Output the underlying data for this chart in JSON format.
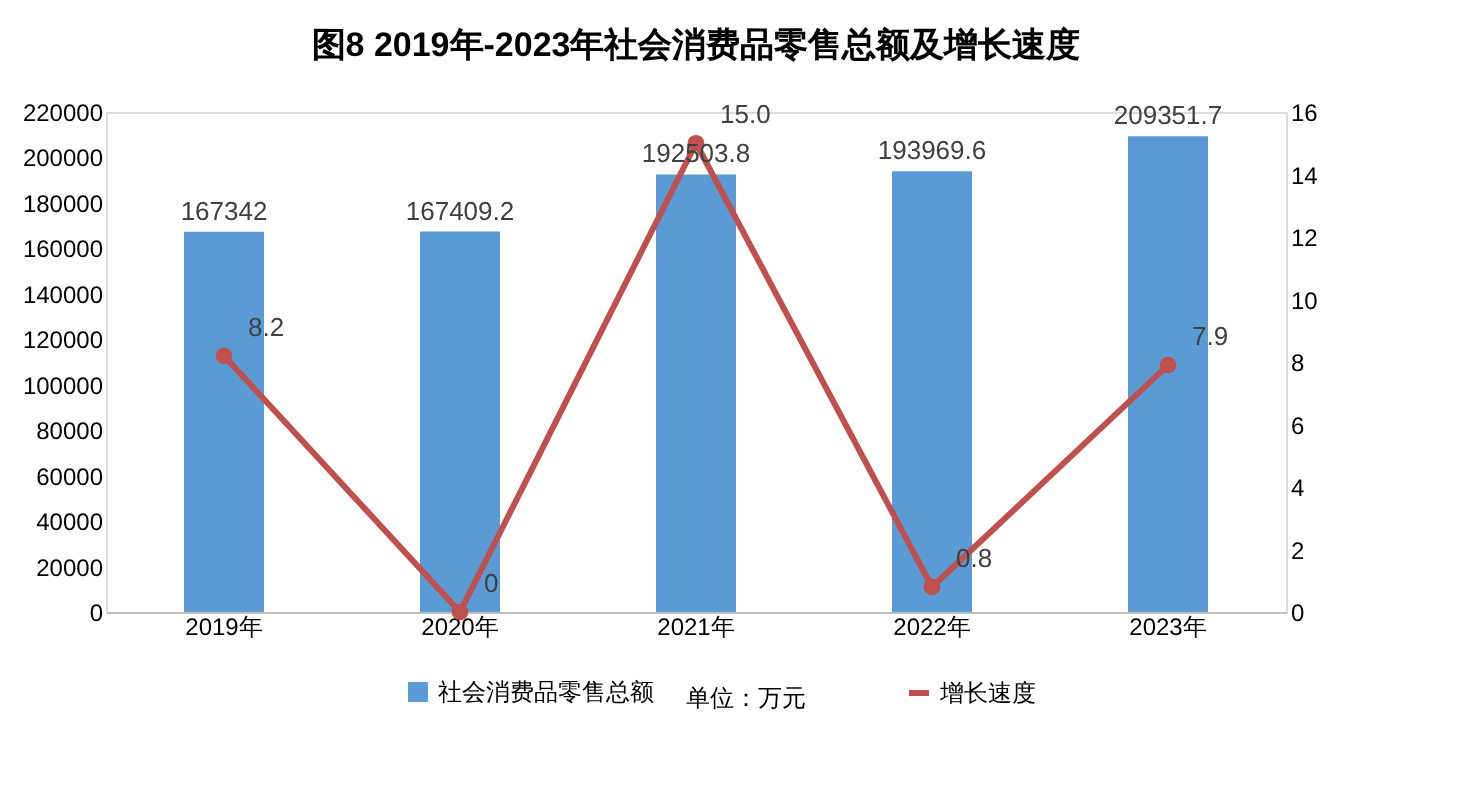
{
  "chart_data": {
    "type": "bar",
    "title": "图8  2019年-2023年社会消费品零售总额及增长速度",
    "categories": [
      "2019年",
      "2020年",
      "2021年",
      "2022年",
      "2023年"
    ],
    "series": [
      {
        "name": "社会消费品零售总额",
        "color": "#5b9bd5",
        "values": [
          167342,
          167409.2,
          192503.8,
          193969.6,
          209351.7
        ],
        "value_labels": [
          "167342",
          "167409.2",
          "192503.8",
          "193969.6",
          "209351.7"
        ]
      },
      {
        "name": "增长速度",
        "type": "line",
        "axis": "y2",
        "color": "#c0504d",
        "values": [
          8.2,
          0,
          15.0,
          0.8,
          7.9
        ],
        "value_labels": [
          "8.2",
          "0",
          "15.0",
          "0.8",
          "7.9"
        ]
      }
    ],
    "ylim": [
      0,
      220000
    ],
    "yticks": [
      0,
      20000,
      40000,
      60000,
      80000,
      100000,
      120000,
      140000,
      160000,
      180000,
      200000,
      220000
    ],
    "y2lim": [
      0,
      16
    ],
    "y2ticks": [
      0,
      2,
      4,
      6,
      8,
      10,
      12,
      14,
      16
    ],
    "annotations": [
      "单位：万元"
    ],
    "legend": "bottom",
    "marker": "circle",
    "line_style": "solid"
  }
}
